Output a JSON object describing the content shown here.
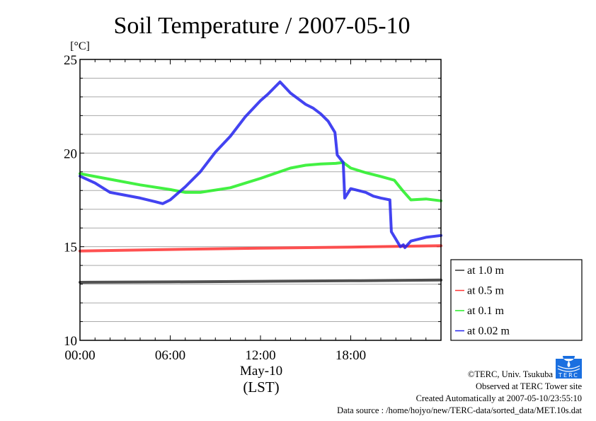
{
  "chart_data": {
    "type": "line",
    "title": "Soil Temperature / 2007-05-10",
    "ylabel": "[°C]",
    "xlabel_date": "May-10",
    "xlabel_tz": "(LST)",
    "xlim": [
      0,
      24
    ],
    "ylim": [
      10,
      25
    ],
    "x_ticks": [
      {
        "v": 0,
        "label": "00:00"
      },
      {
        "v": 6,
        "label": "06:00"
      },
      {
        "v": 12,
        "label": "12:00"
      },
      {
        "v": 18,
        "label": "18:00"
      }
    ],
    "y_ticks": [
      {
        "v": 10,
        "label": "10"
      },
      {
        "v": 15,
        "label": "15"
      },
      {
        "v": 20,
        "label": "20"
      },
      {
        "v": 25,
        "label": "25"
      }
    ],
    "grid": true,
    "legend_position": "right-bottom-outside",
    "series": [
      {
        "name": "at 1.0 m",
        "color": "#333333",
        "points": [
          [
            0,
            13.1
          ],
          [
            6,
            13.12
          ],
          [
            12,
            13.15
          ],
          [
            18,
            13.18
          ],
          [
            24,
            13.22
          ]
        ]
      },
      {
        "name": "at 0.5 m",
        "color": "#ff3333",
        "points": [
          [
            0,
            14.77
          ],
          [
            6,
            14.85
          ],
          [
            12,
            14.92
          ],
          [
            18,
            14.98
          ],
          [
            24,
            15.05
          ]
        ]
      },
      {
        "name": "at 0.1 m",
        "color": "#22ee22",
        "points": [
          [
            0,
            18.9
          ],
          [
            2,
            18.6
          ],
          [
            4,
            18.3
          ],
          [
            6,
            18.05
          ],
          [
            7,
            17.9
          ],
          [
            8,
            17.9
          ],
          [
            10,
            18.15
          ],
          [
            12,
            18.65
          ],
          [
            14,
            19.2
          ],
          [
            15,
            19.35
          ],
          [
            16,
            19.42
          ],
          [
            17,
            19.45
          ],
          [
            17.5,
            19.5
          ],
          [
            18,
            19.2
          ],
          [
            19,
            18.95
          ],
          [
            20,
            18.75
          ],
          [
            20.9,
            18.55
          ],
          [
            21.5,
            17.95
          ],
          [
            22,
            17.5
          ],
          [
            23,
            17.55
          ],
          [
            24,
            17.45
          ]
        ]
      },
      {
        "name": "at 0.02 m",
        "color": "#2222ee",
        "points": [
          [
            0,
            18.77
          ],
          [
            1,
            18.4
          ],
          [
            2,
            17.9
          ],
          [
            3,
            17.75
          ],
          [
            4,
            17.6
          ],
          [
            5,
            17.4
          ],
          [
            5.5,
            17.3
          ],
          [
            6,
            17.5
          ],
          [
            7,
            18.2
          ],
          [
            8,
            19.0
          ],
          [
            9,
            20.05
          ],
          [
            10,
            20.9
          ],
          [
            11,
            21.95
          ],
          [
            12,
            22.8
          ],
          [
            12.5,
            23.15
          ],
          [
            13,
            23.56
          ],
          [
            13.3,
            23.8
          ],
          [
            14,
            23.2
          ],
          [
            15,
            22.6
          ],
          [
            15.5,
            22.4
          ],
          [
            16,
            22.1
          ],
          [
            16.5,
            21.7
          ],
          [
            16.95,
            21.1
          ],
          [
            17.1,
            19.9
          ],
          [
            17.5,
            19.5
          ],
          [
            17.6,
            17.6
          ],
          [
            18,
            18.1
          ],
          [
            19,
            17.9
          ],
          [
            19.5,
            17.7
          ],
          [
            20,
            17.6
          ],
          [
            20.6,
            17.5
          ],
          [
            20.7,
            15.8
          ],
          [
            21,
            15.4
          ],
          [
            21.3,
            15.0
          ],
          [
            21.5,
            15.1
          ],
          [
            21.6,
            14.95
          ],
          [
            22,
            15.3
          ],
          [
            23,
            15.5
          ],
          [
            24,
            15.6
          ]
        ]
      }
    ]
  },
  "footer": {
    "copyright": "©TERC, Univ. Tsukuba",
    "observed": "Observed at TERC Tower site",
    "created": "Created Automatically at 2007-05-10/23:55:10",
    "source": "Data source : /home/hojyo/new/TERC-data/sorted_data/MET.10s.dat",
    "logo_text": "TERC"
  }
}
